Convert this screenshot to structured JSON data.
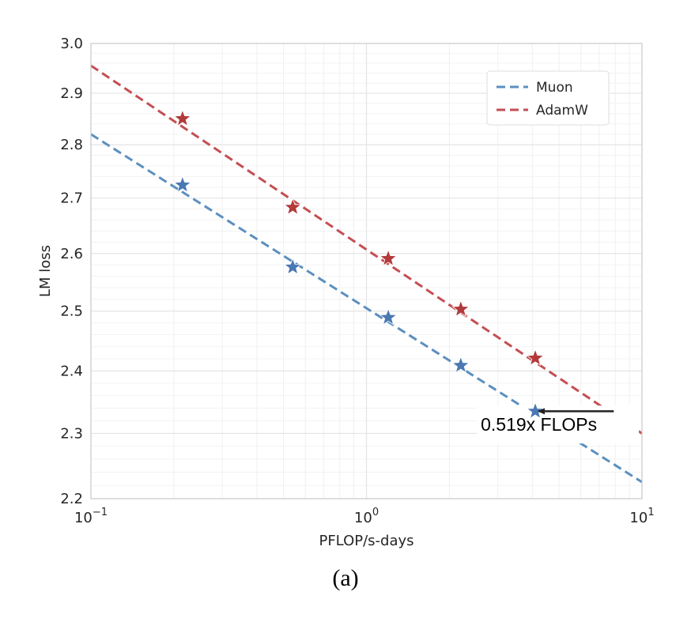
{
  "chart_data": {
    "type": "scatter",
    "title": "",
    "xlabel": "PFLOP/s-days",
    "ylabel": "LM loss",
    "xscale": "log",
    "yscale": "log",
    "xlim": [
      0.1,
      10
    ],
    "ylim": [
      2.2,
      3.0
    ],
    "x_ticks": [
      {
        "value": 0.1,
        "base": "10",
        "exp": "−1"
      },
      {
        "value": 1,
        "base": "10",
        "exp": "0"
      },
      {
        "value": 10,
        "base": "10",
        "exp": "1"
      }
    ],
    "y_ticks": [
      {
        "value": 2.2,
        "label": "2.2"
      },
      {
        "value": 2.3,
        "label": "2.3"
      },
      {
        "value": 2.4,
        "label": "2.4"
      },
      {
        "value": 2.5,
        "label": "2.5"
      },
      {
        "value": 2.6,
        "label": "2.6"
      },
      {
        "value": 2.7,
        "label": "2.7"
      },
      {
        "value": 2.8,
        "label": "2.8"
      },
      {
        "value": 2.9,
        "label": "2.9"
      },
      {
        "value": 3.0,
        "label": "3.0"
      }
    ],
    "grid": true,
    "legend_position": "top-right",
    "series": [
      {
        "name": "Muon",
        "color": "#4a78b3",
        "line_color": "#5b8fbf",
        "points": [
          {
            "x": 0.215,
            "y": 2.724
          },
          {
            "x": 0.54,
            "y": 2.576
          },
          {
            "x": 1.2,
            "y": 2.489
          },
          {
            "x": 2.2,
            "y": 2.409
          },
          {
            "x": 4.1,
            "y": 2.335
          }
        ],
        "fit_line": [
          [
            0.1,
            2.82
          ],
          [
            10,
            2.225
          ]
        ]
      },
      {
        "name": "AdamW",
        "color": "#b33a3a",
        "line_color": "#c44e52",
        "points": [
          {
            "x": 0.215,
            "y": 2.85
          },
          {
            "x": 0.54,
            "y": 2.683
          },
          {
            "x": 1.2,
            "y": 2.591
          },
          {
            "x": 2.2,
            "y": 2.503
          },
          {
            "x": 4.1,
            "y": 2.421
          }
        ],
        "fit_line": [
          [
            0.1,
            2.955
          ],
          [
            10,
            2.3
          ]
        ]
      }
    ],
    "annotation": {
      "text": "0.519x FLOPs",
      "arrow_from": [
        7.9,
        2.335
      ],
      "arrow_to": [
        4.1,
        2.335
      ],
      "text_anchor_point": [
        2.6,
        2.314
      ]
    },
    "caption": "(a)"
  }
}
